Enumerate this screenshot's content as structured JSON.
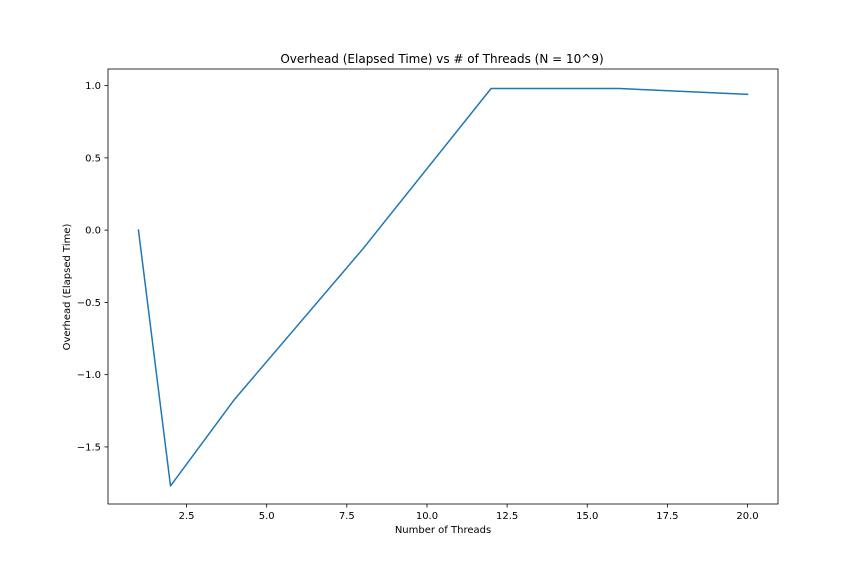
{
  "chart_data": {
    "type": "line",
    "title": "Overhead (Elapsed Time) vs # of Threads (N = 10^9)",
    "xlabel": "Number of Threads",
    "ylabel": "Overhead (Elapsed Time)",
    "xlim": [
      0.05,
      20.95
    ],
    "ylim": [
      -1.895,
      1.115
    ],
    "xticks": [
      2.5,
      5.0,
      7.5,
      10.0,
      12.5,
      15.0,
      17.5,
      20.0
    ],
    "xtick_labels": [
      "2.5",
      "5.0",
      "7.5",
      "10.0",
      "12.5",
      "15.0",
      "17.5",
      "20.0"
    ],
    "yticks": [
      -1.5,
      -1.0,
      -0.5,
      0.0,
      0.5,
      1.0
    ],
    "ytick_labels": [
      "−1.5",
      "−1.0",
      "−0.5",
      "0.0",
      "0.5",
      "1.0"
    ],
    "grid": false,
    "series": [
      {
        "color": "#1f77b4",
        "x": [
          1,
          2,
          4,
          8,
          12,
          16,
          20
        ],
        "y": [
          0.0,
          -1.77,
          -1.17,
          -0.13,
          0.98,
          0.98,
          0.94
        ]
      }
    ]
  }
}
